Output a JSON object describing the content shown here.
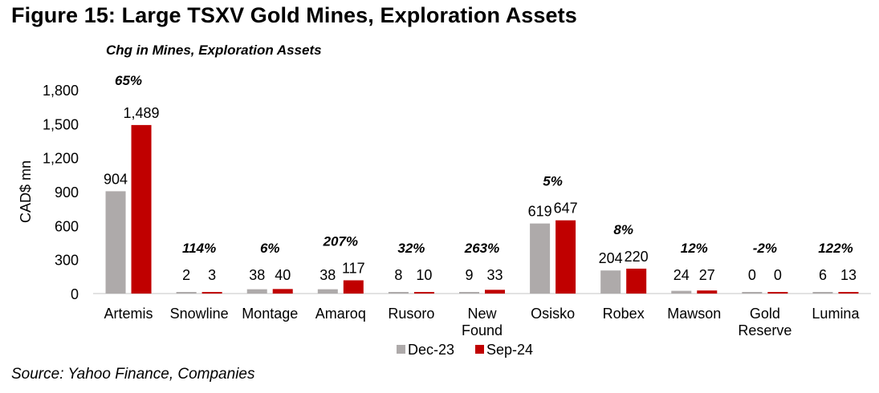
{
  "title": "Figure 15: Large TSXV Gold Mines, Exploration Assets",
  "source": "Source: Yahoo Finance, Companies",
  "chart_data": {
    "type": "bar",
    "title": "Chg in Mines, Exploration Assets",
    "xlabel": "",
    "ylabel": "CAD$ mn",
    "ylim": [
      0,
      1800
    ],
    "yticks": [
      0,
      300,
      600,
      900,
      1200,
      1500,
      1800
    ],
    "ytick_labels": [
      "0",
      "300",
      "600",
      "900",
      "1,200",
      "1,500",
      "1,800"
    ],
    "grid": false,
    "legend_position": "bottom",
    "categories": [
      "Artemis",
      "Snowline",
      "Montage",
      "Amaroq",
      "Rusoro",
      "New Found",
      "Osisko",
      "Robex",
      "Mawson",
      "Gold Reserve",
      "Lumina"
    ],
    "category_lines": [
      [
        "Artemis"
      ],
      [
        "Snowline"
      ],
      [
        "Montage"
      ],
      [
        "Amaroq"
      ],
      [
        "Rusoro"
      ],
      [
        "New",
        "Found"
      ],
      [
        "Osisko"
      ],
      [
        "Robex"
      ],
      [
        "Mawson"
      ],
      [
        "Gold",
        "Reserve"
      ],
      [
        "Lumina"
      ]
    ],
    "series": [
      {
        "name": "Dec-23",
        "color": "#aeaaaa",
        "values": [
          904,
          2,
          38,
          38,
          8,
          9,
          619,
          204,
          24,
          0,
          6
        ],
        "labels": [
          "904",
          "2",
          "38",
          "38",
          "8",
          "9",
          "619",
          "204",
          "24",
          "0",
          "6"
        ]
      },
      {
        "name": "Sep-24",
        "color": "#c00000",
        "values": [
          1489,
          3,
          40,
          117,
          10,
          33,
          647,
          220,
          27,
          0,
          13
        ],
        "labels": [
          "1,489",
          "3",
          "40",
          "117",
          "10",
          "33",
          "647",
          "220",
          "27",
          "0",
          "13"
        ]
      }
    ],
    "annotations": [
      "65%",
      "114%",
      "6%",
      "207%",
      "32%",
      "263%",
      "5%",
      "8%",
      "12%",
      "-2%",
      "122%"
    ]
  }
}
